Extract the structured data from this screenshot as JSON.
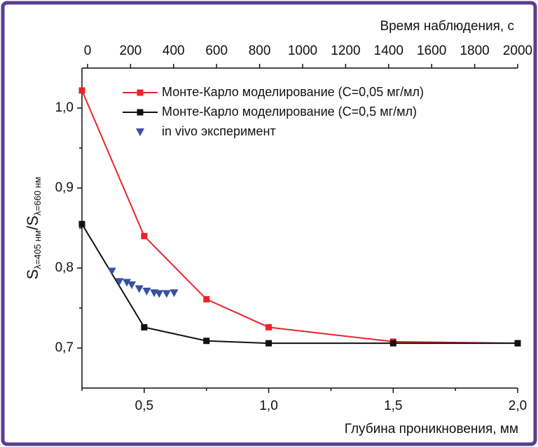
{
  "chart_data": {
    "type": "line",
    "x_label": "Глубина проникновения, мм",
    "x2_label": "Время наблюдения, с",
    "y_label": {
      "s1": "S",
      "sub1": "λ=405 нм",
      "s2": "/S",
      "sub2": "λ=660 нм"
    },
    "xlim": [
      0.25,
      2.0
    ],
    "xticks": [
      {
        "value": 0.5,
        "label": "0,5"
      },
      {
        "value": 1.0,
        "label": "1,0"
      },
      {
        "value": 1.5,
        "label": "1,5"
      },
      {
        "value": 2.0,
        "label": "2,0"
      }
    ],
    "minor_xticks": [
      0.25,
      0.75,
      1.25,
      1.75
    ],
    "x2lim": [
      -26,
      2000
    ],
    "x2ticks": [
      0,
      200,
      400,
      600,
      800,
      1000,
      1200,
      1400,
      1600,
      1800,
      2000
    ],
    "ylim": [
      0.65,
      1.05
    ],
    "yticks": [
      {
        "value": 0.7,
        "label": "0,7"
      },
      {
        "value": 0.8,
        "label": "0,8"
      },
      {
        "value": 0.9,
        "label": "0,9"
      },
      {
        "value": 1.0,
        "label": "1,0"
      }
    ],
    "minor_yticks": [
      0.75,
      0.85,
      0.95
    ],
    "legend": "upper right",
    "series": [
      {
        "name": "Монте-Карло моделирование (С=0,05 мг/мл)",
        "color": "#e8252b",
        "marker": "square",
        "line": true,
        "x": [
          0.25,
          0.5,
          0.75,
          1.0,
          1.5,
          2.0
        ],
        "values": [
          1.022,
          0.84,
          0.761,
          0.726,
          0.708,
          0.706
        ]
      },
      {
        "name": "Монте-Карло моделирование (С=0,5 мг/мл)",
        "color": "#111111",
        "marker": "square",
        "line": true,
        "x": [
          0.25,
          0.5,
          0.75,
          1.0,
          1.5,
          2.0
        ],
        "values": [
          0.855,
          0.726,
          0.709,
          0.706,
          0.706,
          0.706
        ]
      },
      {
        "name": "in vivo эксперимент",
        "color": "#3451a3",
        "marker": "triangle-down",
        "line": false,
        "x": [
          0.37,
          0.4,
          0.43,
          0.45,
          0.48,
          0.51,
          0.54,
          0.56,
          0.59,
          0.62
        ],
        "values": [
          0.796,
          0.783,
          0.782,
          0.779,
          0.774,
          0.771,
          0.769,
          0.768,
          0.768,
          0.769
        ]
      }
    ]
  }
}
